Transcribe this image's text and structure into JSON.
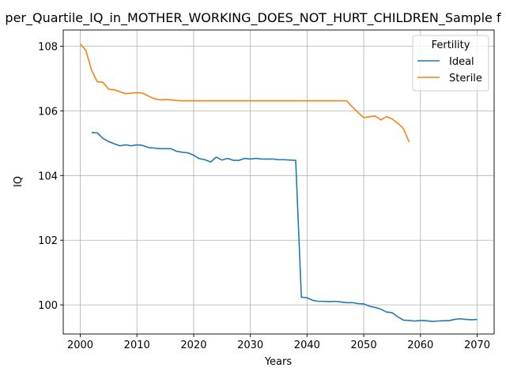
{
  "chart_data": {
    "type": "line",
    "title": "per_Quartile_IQ_in_MOTHER_WORKING_DOES_NOT_HURT_CHILDREN_Sample f",
    "xlabel": "Years",
    "ylabel": "IQ",
    "xlim": [
      1997,
      2073
    ],
    "ylim": [
      99.1,
      108.5
    ],
    "xticks": [
      "2000",
      "2010",
      "2020",
      "2030",
      "2040",
      "2050",
      "2060",
      "2070"
    ],
    "yticks": [
      "100",
      "102",
      "104",
      "106",
      "108"
    ],
    "grid": true,
    "legend": {
      "title": "Fertility",
      "placement": "top-right"
    },
    "series": [
      {
        "name": "Ideal",
        "color": "#1f77b4",
        "x": [
          2002,
          2003,
          2004,
          2005,
          2006,
          2007,
          2008,
          2009,
          2010,
          2011,
          2012,
          2013,
          2014,
          2015,
          2016,
          2017,
          2018,
          2019,
          2020,
          2021,
          2022,
          2023,
          2024,
          2025,
          2026,
          2027,
          2028,
          2029,
          2030,
          2031,
          2032,
          2033,
          2034,
          2035,
          2036,
          2037,
          2038,
          2039,
          2040,
          2041,
          2042,
          2043,
          2044,
          2045,
          2046,
          2047,
          2048,
          2049,
          2050,
          2051,
          2052,
          2053,
          2054,
          2055,
          2056,
          2057,
          2058,
          2059,
          2060,
          2061,
          2062,
          2063,
          2064,
          2065,
          2066,
          2067,
          2068,
          2069,
          2070
        ],
        "values": [
          105.33,
          105.32,
          105.15,
          105.05,
          104.98,
          104.92,
          104.95,
          104.92,
          104.95,
          104.93,
          104.87,
          104.85,
          104.83,
          104.83,
          104.83,
          104.75,
          104.72,
          104.7,
          104.63,
          104.52,
          104.49,
          104.42,
          104.57,
          104.48,
          104.53,
          104.47,
          104.47,
          104.53,
          104.51,
          104.53,
          104.51,
          104.51,
          104.51,
          104.49,
          104.49,
          104.48,
          104.47,
          100.24,
          100.22,
          100.14,
          100.11,
          100.11,
          100.1,
          100.11,
          100.09,
          100.07,
          100.07,
          100.04,
          100.03,
          99.96,
          99.92,
          99.87,
          99.78,
          99.76,
          99.63,
          99.53,
          99.52,
          99.5,
          99.52,
          99.51,
          99.49,
          99.5,
          99.51,
          99.51,
          99.55,
          99.57,
          99.55,
          99.54,
          99.55
        ]
      },
      {
        "name": "Sterile",
        "color": "#ff7f0e",
        "x": [
          2000,
          2001,
          2002,
          2003,
          2004,
          2005,
          2006,
          2007,
          2008,
          2009,
          2010,
          2011,
          2012,
          2013,
          2014,
          2015,
          2016,
          2017,
          2018,
          2019,
          2020,
          2025,
          2030,
          2035,
          2040,
          2045,
          2047,
          2048,
          2049,
          2050,
          2051,
          2052,
          2053,
          2054,
          2055,
          2056,
          2057,
          2058
        ],
        "values": [
          108.07,
          107.87,
          107.25,
          106.9,
          106.88,
          106.67,
          106.65,
          106.59,
          106.53,
          106.55,
          106.56,
          106.55,
          106.46,
          106.38,
          106.34,
          106.35,
          106.34,
          106.32,
          106.31,
          106.31,
          106.31,
          106.31,
          106.31,
          106.31,
          106.31,
          106.31,
          106.31,
          106.12,
          105.95,
          105.79,
          105.82,
          105.84,
          105.72,
          105.82,
          105.75,
          105.62,
          105.45,
          105.04
        ]
      }
    ]
  }
}
